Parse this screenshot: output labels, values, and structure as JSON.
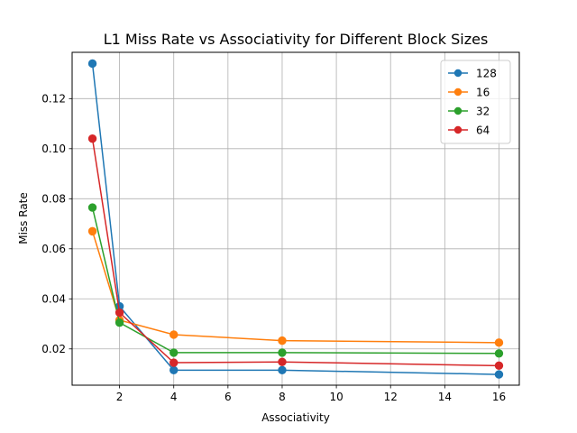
{
  "chart_data": {
    "type": "line",
    "title": "L1 Miss Rate vs Associativity for Different Block Sizes",
    "xlabel": "Associativity",
    "ylabel": "Miss Rate",
    "xlim": [
      0.25,
      16.75
    ],
    "ylim": [
      0.0055,
      0.1385
    ],
    "xticks": [
      2,
      4,
      6,
      8,
      10,
      12,
      14,
      16
    ],
    "yticks": [
      0.02,
      0.04,
      0.06,
      0.08,
      0.1,
      0.12
    ],
    "xtick_labels": [
      "2",
      "4",
      "6",
      "8",
      "10",
      "12",
      "14",
      "16"
    ],
    "ytick_labels": [
      "0.02",
      "0.04",
      "0.06",
      "0.08",
      "0.10",
      "0.12"
    ],
    "grid": true,
    "legend_position": "top-right",
    "x": [
      1,
      2,
      4,
      8,
      16
    ],
    "series": [
      {
        "name": "128",
        "color": "#1f77b4",
        "values": [
          0.134,
          0.037,
          0.0115,
          0.0115,
          0.0098
        ]
      },
      {
        "name": "16",
        "color": "#ff7f0e",
        "values": [
          0.067,
          0.0315,
          0.0257,
          0.0233,
          0.0225
        ]
      },
      {
        "name": "32",
        "color": "#2ca02c",
        "values": [
          0.0765,
          0.0305,
          0.0185,
          0.0185,
          0.0182
        ]
      },
      {
        "name": "64",
        "color": "#d62728",
        "values": [
          0.104,
          0.0345,
          0.0145,
          0.0148,
          0.0133
        ]
      }
    ]
  }
}
